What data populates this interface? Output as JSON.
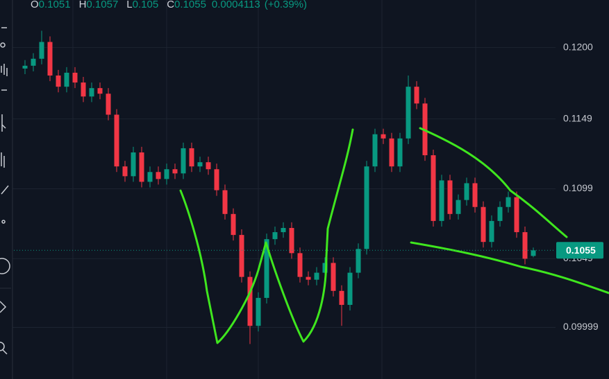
{
  "chart_data": {
    "type": "candlestick",
    "header": {
      "labels": [
        "O",
        "H",
        "L",
        "C"
      ],
      "change": 0.0004113,
      "change_percent": "(+0.39%)"
    },
    "open": [
      0.1185,
      0.1187,
      0.1192,
      0.1204,
      0.118,
      0.1172,
      0.1182,
      0.1175,
      0.1165,
      0.1171,
      0.1167,
      0.1152,
      0.1115,
      0.1108,
      0.1125,
      0.1104,
      0.1111,
      0.1106,
      0.1113,
      0.111,
      0.1128,
      0.1115,
      0.1118,
      0.1113,
      0.1098,
      0.1081,
      0.1066,
      0.1036,
      0.1001,
      0.1021,
      0.1063,
      0.1068,
      0.1071,
      0.1053,
      0.1036,
      0.1034,
      0.1039,
      0.1046,
      0.1026,
      0.1016,
      0.1039,
      0.1056,
      0.1115,
      0.1138,
      0.1135,
      0.1115,
      0.1135,
      0.1172,
      0.116,
      0.1123,
      0.1076,
      0.1105,
      0.1081,
      0.1091,
      0.1103,
      0.1086,
      0.1061,
      0.1076,
      0.1086,
      0.1093,
      0.1068,
      0.1051
    ],
    "high": [
      0.1191,
      0.1196,
      0.1212,
      0.1208,
      0.1184,
      0.1186,
      0.1186,
      0.1179,
      0.1175,
      0.1175,
      0.1171,
      0.1156,
      0.1119,
      0.1129,
      0.1129,
      0.1115,
      0.1115,
      0.1117,
      0.1117,
      0.1132,
      0.1132,
      0.1122,
      0.1122,
      0.1117,
      0.1102,
      0.1085,
      0.107,
      0.104,
      0.1025,
      0.1067,
      0.1072,
      0.1075,
      0.1075,
      0.1057,
      0.104,
      0.1043,
      0.105,
      0.105,
      0.103,
      0.1043,
      0.106,
      0.1119,
      0.1142,
      0.1142,
      0.1139,
      0.1139,
      0.118,
      0.1176,
      0.1164,
      0.1127,
      0.1109,
      0.1109,
      0.1095,
      0.1107,
      0.1107,
      0.109,
      0.108,
      0.109,
      0.1097,
      0.1097,
      0.1072,
      0.1057
    ],
    "low": [
      0.1181,
      0.1183,
      0.1188,
      0.1176,
      0.1168,
      0.1168,
      0.1171,
      0.1161,
      0.1161,
      0.1163,
      0.1148,
      0.1111,
      0.1104,
      0.1104,
      0.11,
      0.11,
      0.1102,
      0.1102,
      0.1106,
      0.1106,
      0.1111,
      0.1111,
      0.1109,
      0.1094,
      0.1077,
      0.1062,
      0.1032,
      0.0988,
      0.0997,
      0.1017,
      0.1059,
      0.1064,
      0.1049,
      0.1032,
      0.103,
      0.103,
      0.1035,
      0.1022,
      0.1001,
      0.1012,
      0.1035,
      0.1052,
      0.1111,
      0.1131,
      0.1111,
      0.1111,
      0.1131,
      0.1156,
      0.1119,
      0.1072,
      0.1072,
      0.1077,
      0.1077,
      0.1087,
      0.1082,
      0.1057,
      0.1057,
      0.1072,
      0.1082,
      0.1064,
      0.1045,
      0.105
    ],
    "close": [
      0.1187,
      0.1192,
      0.1204,
      0.118,
      0.1172,
      0.1182,
      0.1175,
      0.1165,
      0.1171,
      0.1167,
      0.1152,
      0.1115,
      0.1108,
      0.1125,
      0.1104,
      0.1111,
      0.1106,
      0.1113,
      0.111,
      0.1128,
      0.1115,
      0.1118,
      0.1113,
      0.1098,
      0.1081,
      0.1066,
      0.1036,
      0.1001,
      0.1021,
      0.1063,
      0.1068,
      0.1071,
      0.1053,
      0.1036,
      0.1034,
      0.1039,
      0.1046,
      0.1026,
      0.1016,
      0.1039,
      0.1056,
      0.1115,
      0.1138,
      0.1135,
      0.1115,
      0.1135,
      0.1172,
      0.116,
      0.1123,
      0.1076,
      0.1105,
      0.1081,
      0.1091,
      0.1103,
      0.1086,
      0.1061,
      0.1076,
      0.1086,
      0.1093,
      0.1068,
      0.1049,
      0.1055
    ],
    "up_color": "#089981",
    "down_color": "#f23645",
    "ylim": [
      0.0963,
      0.1234
    ],
    "yticks": [
      {
        "value": 0.12,
        "label": "0.1200"
      },
      0.1149,
      0.1099,
      0.1049,
      0.09999
    ],
    "grid": true
  }
}
